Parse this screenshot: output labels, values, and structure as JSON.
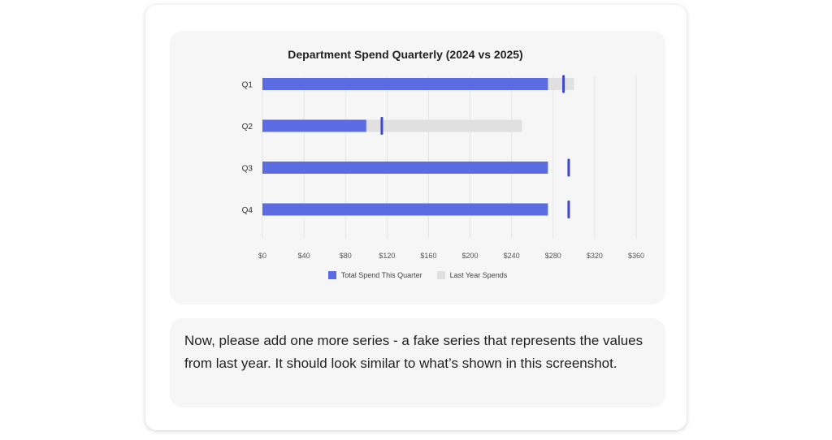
{
  "chart_data": {
    "type": "bar",
    "orientation": "horizontal",
    "title": "Department Spend Quarterly (2024 vs 2025)",
    "categories": [
      "Q1",
      "Q2",
      "Q3",
      "Q4"
    ],
    "series": [
      {
        "name": "Total Spend This Quarter",
        "values": [
          275,
          100,
          275,
          275
        ],
        "color": "#5b6be1"
      },
      {
        "name": "Last Year Spends",
        "values": [
          300,
          250,
          0,
          0
        ],
        "color": "#e0e0e0"
      }
    ],
    "target_markers": [
      290,
      115,
      295,
      295
    ],
    "marker_color": "#3f48c8",
    "xlim": [
      0,
      360
    ],
    "x_ticks": [
      "$0",
      "$40",
      "$80",
      "$120",
      "$160",
      "$200",
      "$240",
      "$280",
      "$320",
      "$360"
    ],
    "grid": true,
    "legend": "bottom"
  },
  "message": {
    "text": "Now, please add one more series - a fake series that represents the values from last year. It should look similar to what’s shown in this screenshot."
  }
}
